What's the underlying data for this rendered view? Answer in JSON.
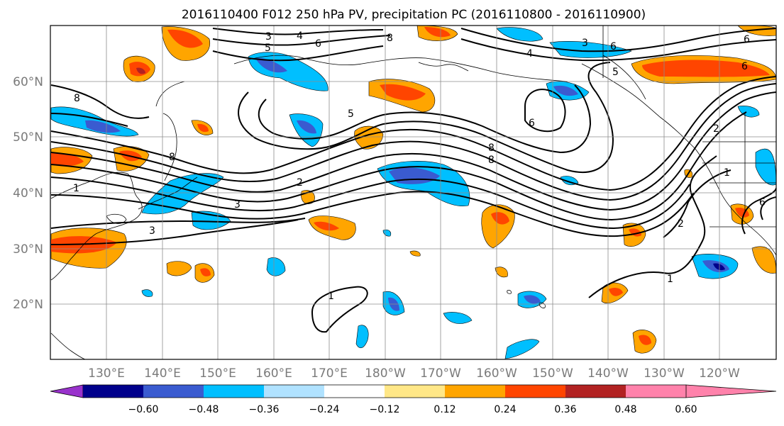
{
  "title": "2016110400 F012 250 hPa PV, precipitation PC (2016110800 - 2016110900)",
  "lat_ticks": [
    "60°N",
    "50°N",
    "40°N",
    "30°N",
    "20°N"
  ],
  "lon_ticks": [
    "130°E",
    "140°E",
    "150°E",
    "160°E",
    "170°E",
    "180°W",
    "170°W",
    "160°W",
    "150°W",
    "140°W",
    "130°W",
    "120°W"
  ],
  "colorbar": {
    "ticks": [
      "−0.60",
      "−0.48",
      "−0.36",
      "−0.24",
      "−0.12",
      "0.12",
      "0.24",
      "0.36",
      "0.48",
      "0.60"
    ],
    "colors": [
      "#9932cc",
      "#00008b",
      "#3a5bd0",
      "#00bfff",
      "#b0e2ff",
      "#ffffff",
      "#ffe787",
      "#ffa500",
      "#ff4500",
      "#b22222",
      "#ff82ab"
    ]
  },
  "contour_labels": [
    "3",
    "4",
    "5",
    "6",
    "8",
    "5",
    "6",
    "8",
    "8",
    "6",
    "4",
    "3",
    "6",
    "6",
    "5",
    "8",
    "2",
    "1",
    "8",
    "3",
    "3",
    "2",
    "1",
    "2",
    "1",
    "1",
    "6"
  ]
}
